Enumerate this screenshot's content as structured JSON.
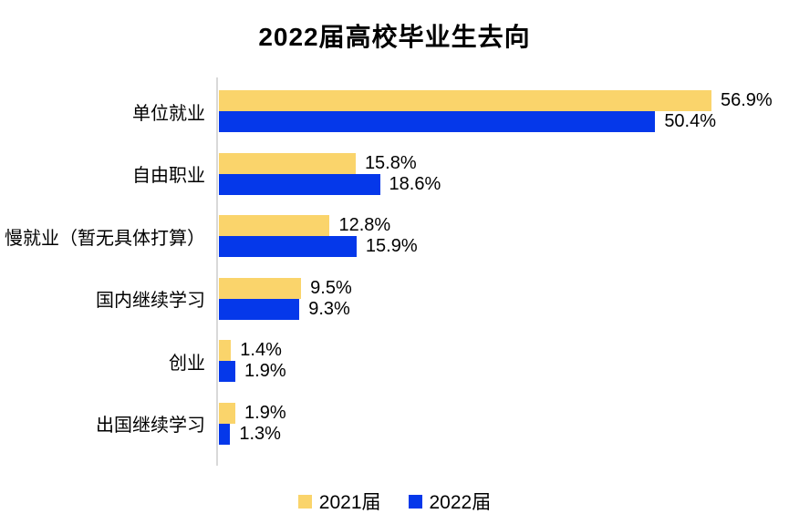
{
  "title": "2022届高校毕业生去向",
  "colors": {
    "series_2021": "#FAD46B",
    "series_2022": "#0538EA",
    "axis_line": "#D9D9D9",
    "text": "#000000",
    "background": "#FFFFFF"
  },
  "legend": {
    "items": [
      {
        "label": "2021届",
        "color": "#FAD46B"
      },
      {
        "label": "2022届",
        "color": "#0538EA"
      }
    ]
  },
  "chart_data": {
    "type": "bar",
    "orientation": "horizontal",
    "title": "2022届高校毕业生去向",
    "categories": [
      "单位就业",
      "自由职业",
      "慢就业（暂无具体打算）",
      "国内继续学习",
      "创业",
      "出国继续学习"
    ],
    "series": [
      {
        "name": "2021届",
        "color": "#FAD46B",
        "values": [
          56.9,
          15.8,
          12.8,
          9.5,
          1.4,
          1.9
        ],
        "labels": [
          "56.9%",
          "15.8%",
          "12.8%",
          "9.5%",
          "1.4%",
          "1.9%"
        ]
      },
      {
        "name": "2022届",
        "color": "#0538EA",
        "values": [
          50.4,
          18.6,
          15.9,
          9.3,
          1.9,
          1.3
        ],
        "labels": [
          "50.4%",
          "18.6%",
          "15.9%",
          "9.3%",
          "1.9%",
          "1.3%"
        ]
      }
    ],
    "xlim": [
      0,
      60
    ],
    "value_suffix": "%",
    "grid": false,
    "axis_labels_visible": false,
    "legend_position": "bottom",
    "bar_value_labels": true
  }
}
